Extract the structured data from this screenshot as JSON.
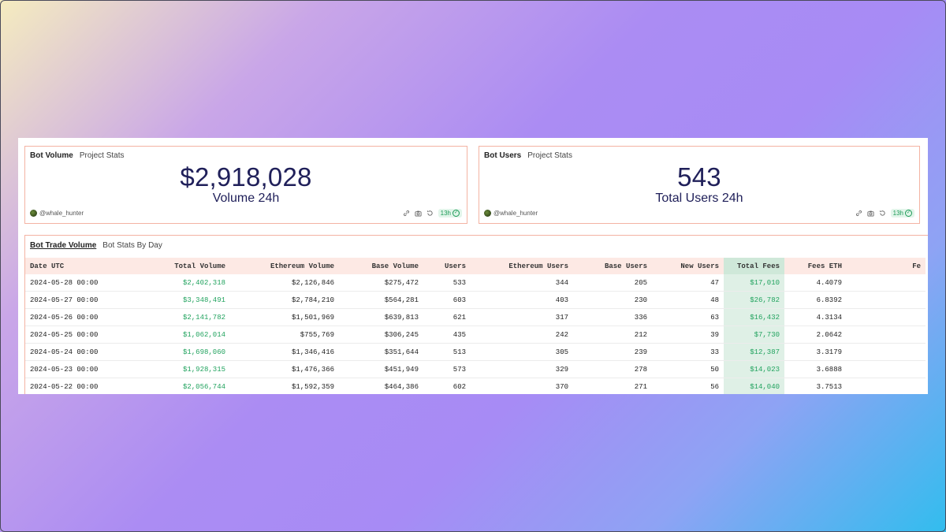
{
  "cards": {
    "volume": {
      "title": "Bot Volume",
      "subtitle": "Project Stats",
      "value": "$2,918,028",
      "label": "Volume 24h",
      "author": "@whale_hunter",
      "age": "13h"
    },
    "users": {
      "title": "Bot Users",
      "subtitle": "Project Stats",
      "value": "543",
      "label": "Total Users 24h",
      "author": "@whale_hunter",
      "age": "13h"
    }
  },
  "table": {
    "title": "Bot Trade Volume",
    "subtitle": "Bot Stats By Day",
    "columns": [
      "Date UTC",
      "Total Volume",
      "Ethereum Volume",
      "Base Volume",
      "Users",
      "Ethereum Users",
      "Base Users",
      "New Users",
      "Total Fees",
      "Fees ETH",
      "Fe"
    ],
    "rows": [
      [
        "2024-05-28 00:00",
        "$2,402,318",
        "$2,126,846",
        "$275,472",
        "533",
        "344",
        "205",
        "47",
        "$17,010",
        "4.4079",
        ""
      ],
      [
        "2024-05-27 00:00",
        "$3,348,491",
        "$2,784,210",
        "$564,281",
        "603",
        "403",
        "230",
        "48",
        "$26,782",
        "6.8392",
        ""
      ],
      [
        "2024-05-26 00:00",
        "$2,141,782",
        "$1,501,969",
        "$639,813",
        "621",
        "317",
        "336",
        "63",
        "$16,432",
        "4.3134",
        ""
      ],
      [
        "2024-05-25 00:00",
        "$1,062,014",
        "$755,769",
        "$306,245",
        "435",
        "242",
        "212",
        "39",
        "$7,730",
        "2.0642",
        ""
      ],
      [
        "2024-05-24 00:00",
        "$1,698,060",
        "$1,346,416",
        "$351,644",
        "513",
        "305",
        "239",
        "33",
        "$12,387",
        "3.3179",
        ""
      ],
      [
        "2024-05-23 00:00",
        "$1,928,315",
        "$1,476,366",
        "$451,949",
        "573",
        "329",
        "278",
        "50",
        "$14,023",
        "3.6888",
        ""
      ],
      [
        "2024-05-22 00:00",
        "$2,056,744",
        "$1,592,359",
        "$464,386",
        "602",
        "370",
        "271",
        "56",
        "$14,040",
        "3.7513",
        ""
      ]
    ]
  },
  "colors": {
    "accent_green": "#22a35f",
    "border": "#f4b3a3",
    "header_bg": "#fde9e4",
    "fees_highlight": "#dff0e6",
    "value_text": "#20205a"
  },
  "icons": [
    "avatar",
    "link-icon",
    "camera-icon",
    "refresh-icon",
    "check-circle-icon"
  ]
}
